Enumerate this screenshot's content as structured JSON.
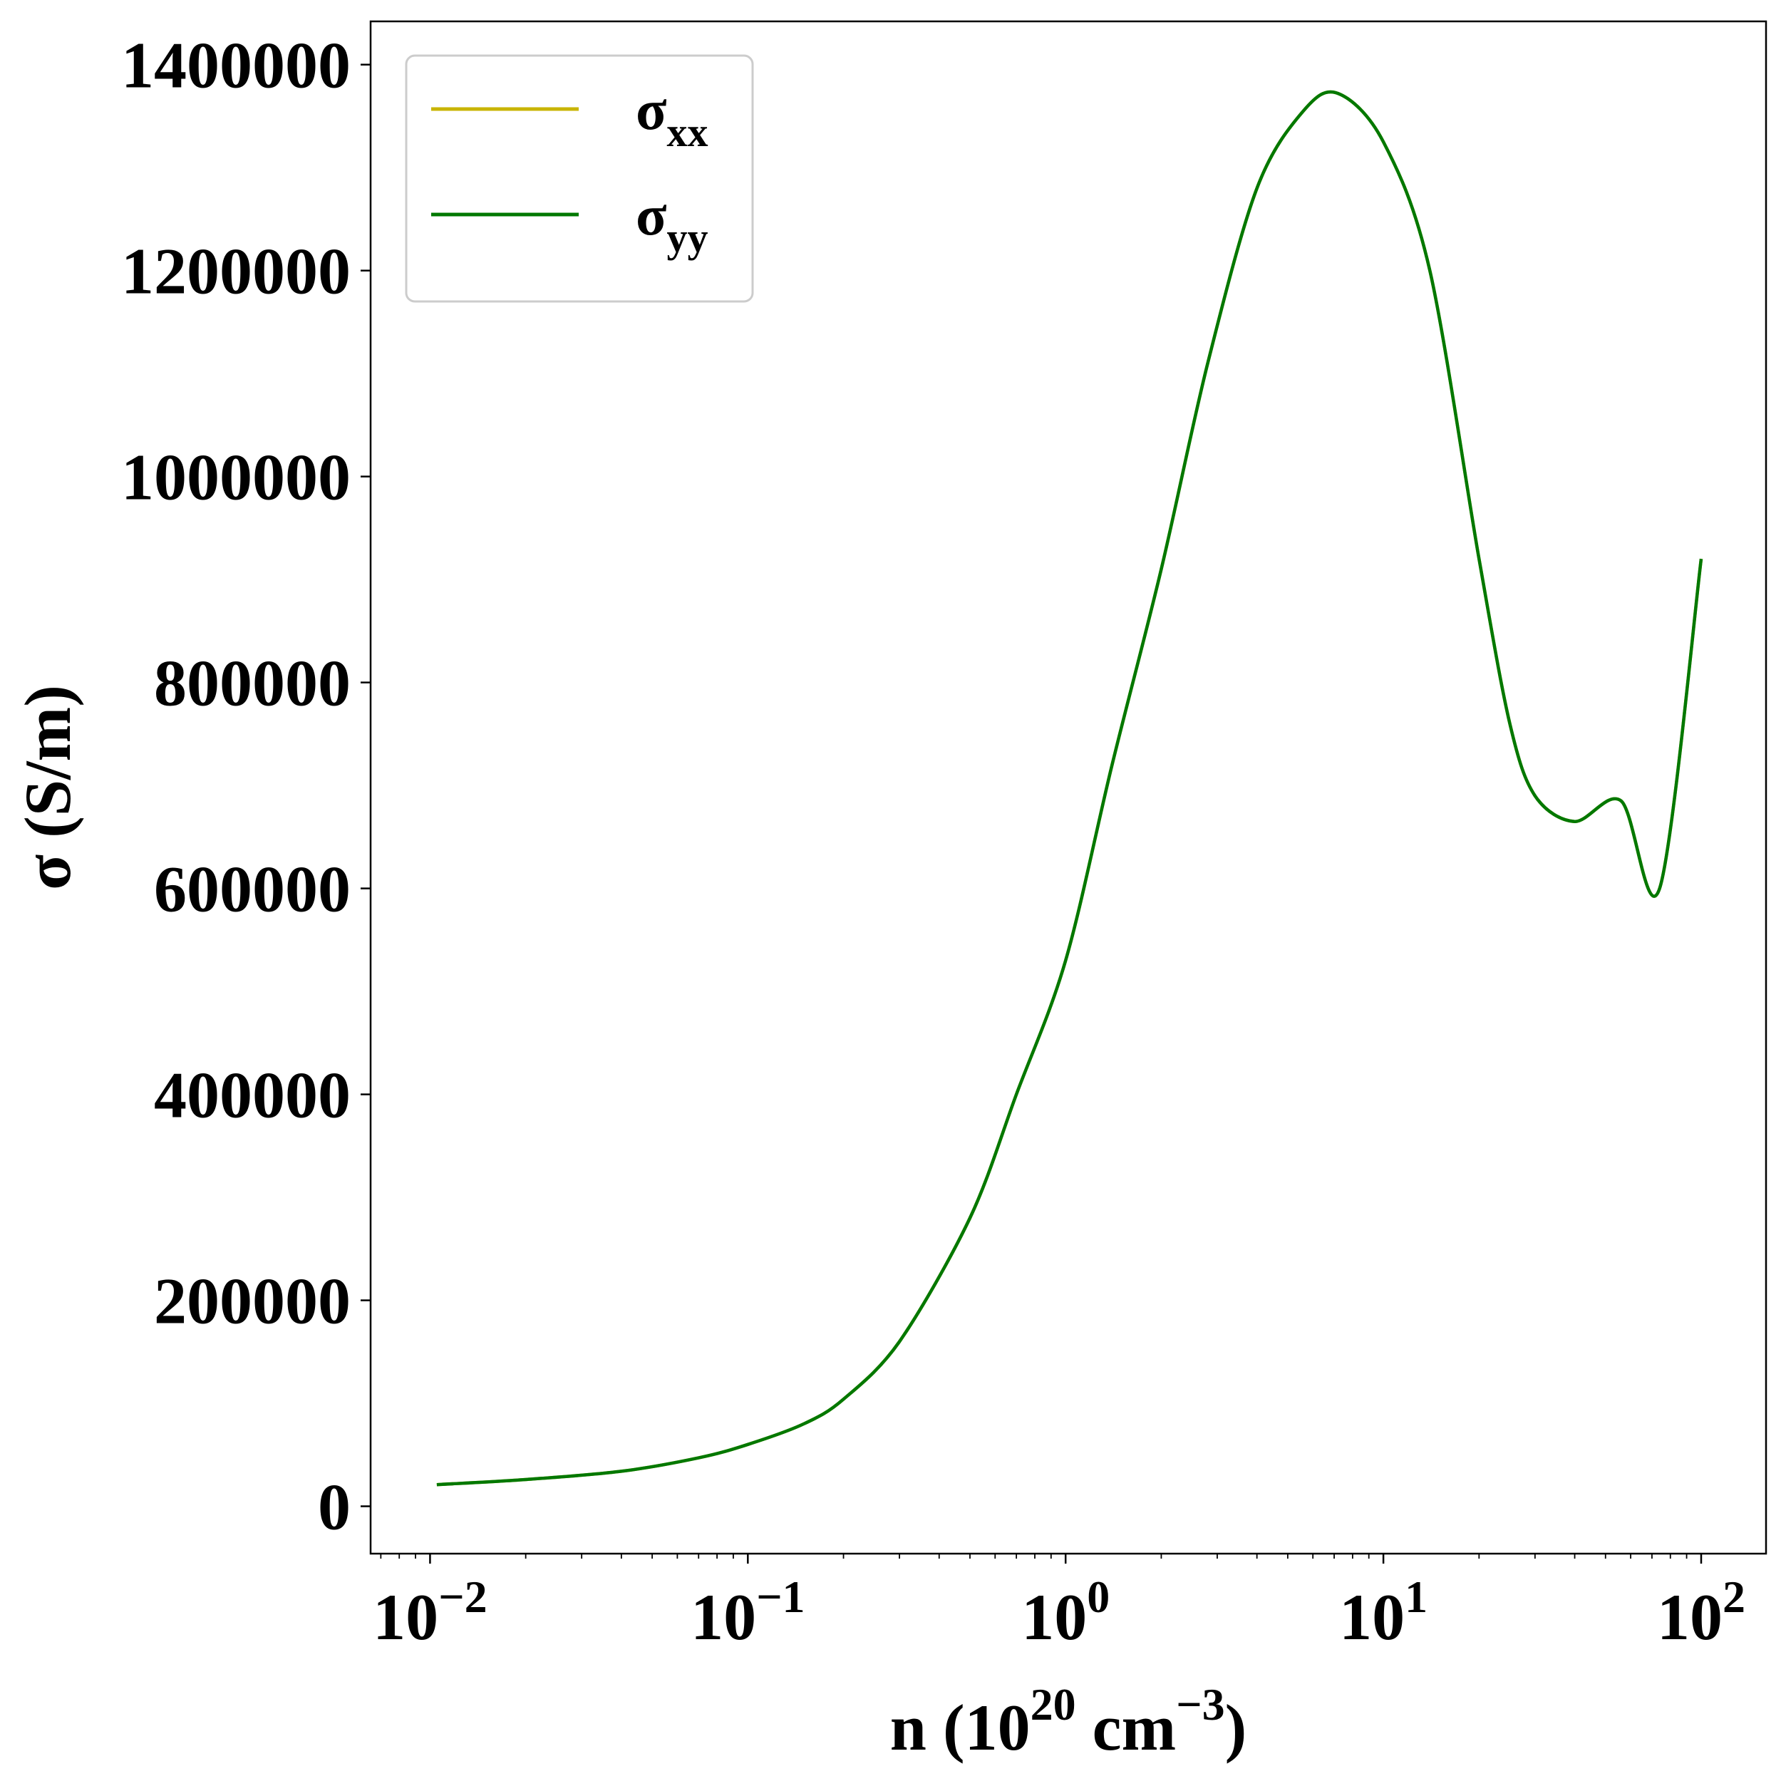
{
  "chart_data": {
    "type": "line",
    "xlabel": "n (10^20 cm^-3)",
    "xlabel_parts": {
      "pre": "n (10",
      "exp1": "20",
      "mid": " cm",
      "exp2": "−3",
      "post": ")"
    },
    "ylabel": "σ (S/m)",
    "xscale": "log",
    "xlim": [
      0.0065,
      160
    ],
    "ylim": [
      -46000,
      1442000
    ],
    "x_tick_values": [
      0.01,
      0.1,
      1,
      10,
      100
    ],
    "x_tick_labels": [
      {
        "base": "10",
        "exp": "−2"
      },
      {
        "base": "10",
        "exp": "−1"
      },
      {
        "base": "10",
        "exp": "0"
      },
      {
        "base": "10",
        "exp": "1"
      },
      {
        "base": "10",
        "exp": "2"
      }
    ],
    "y_tick_values": [
      0,
      200000,
      400000,
      600000,
      800000,
      1000000,
      1200000,
      1400000
    ],
    "y_tick_labels": [
      "0",
      "200000",
      "400000",
      "600000",
      "800000",
      "1000000",
      "1200000",
      "1400000"
    ],
    "grid": false,
    "legend_position": "top-left",
    "series": [
      {
        "name": "σxx",
        "name_base": "σ",
        "name_sub": "xx",
        "color": "#c8b400",
        "x": [
          0.0105,
          0.02,
          0.04,
          0.07,
          0.1,
          0.15,
          0.2,
          0.3,
          0.5,
          0.7,
          1.0,
          1.4,
          2.0,
          2.8,
          4.0,
          5.6,
          7.2,
          10,
          14,
          20,
          25,
          30,
          40,
          56,
          74,
          100
        ],
        "y": [
          21000,
          26000,
          34000,
          47000,
          60000,
          80000,
          104000,
          160000,
          280000,
          400000,
          530000,
          720000,
          910000,
          1110000,
          1280000,
          1355000,
          1372000,
          1325000,
          1200000,
          920000,
          760000,
          690000,
          665000,
          685000,
          600000,
          920000
        ]
      },
      {
        "name": "σyy",
        "name_base": "σ",
        "name_sub": "yy",
        "color": "#007800",
        "x": [
          0.0105,
          0.02,
          0.04,
          0.07,
          0.1,
          0.15,
          0.2,
          0.3,
          0.5,
          0.7,
          1.0,
          1.4,
          2.0,
          2.8,
          4.0,
          5.6,
          7.2,
          10,
          14,
          20,
          25,
          30,
          40,
          56,
          74,
          100
        ],
        "y": [
          21000,
          26000,
          34000,
          47000,
          60000,
          80000,
          104000,
          160000,
          280000,
          400000,
          530000,
          720000,
          910000,
          1110000,
          1280000,
          1355000,
          1372000,
          1325000,
          1200000,
          920000,
          760000,
          690000,
          665000,
          685000,
          600000,
          920000
        ]
      }
    ]
  }
}
